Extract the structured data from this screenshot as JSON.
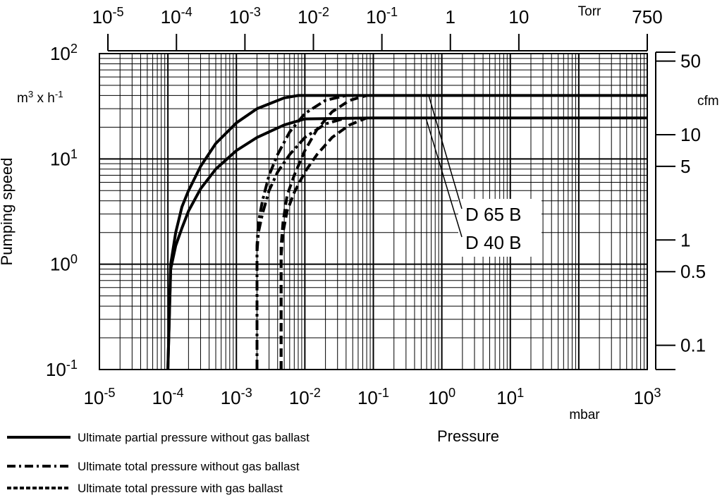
{
  "chart_data": {
    "type": "line",
    "title": "",
    "xlabel": "Pressure",
    "ylabel": "Pumping speed",
    "x_scale": "log",
    "y_scale": "log",
    "xlim": [
      1e-05,
      1000
    ],
    "ylim": [
      0.1,
      100
    ],
    "x_unit": "mbar",
    "y_unit": "m³ x h⁻¹",
    "grid": true,
    "legend_position": "bottom-left",
    "bottom_ticks": [
      {
        "label": "10",
        "exp": "-5"
      },
      {
        "label": "10",
        "exp": "-4"
      },
      {
        "label": "10",
        "exp": "-3"
      },
      {
        "label": "10",
        "exp": "-2"
      },
      {
        "label": "10",
        "exp": "-1"
      },
      {
        "label": "10",
        "exp": "0"
      },
      {
        "label": "10",
        "exp": "1"
      },
      {
        "label": "10",
        "exp": "3"
      }
    ],
    "left_ticks": [
      {
        "label": "10",
        "exp": "2"
      },
      {
        "label": "10",
        "exp": "1"
      },
      {
        "label": "10",
        "exp": "0"
      },
      {
        "label": "10",
        "exp": "-1"
      }
    ],
    "top_axis": {
      "unit": "Torr",
      "ticks": [
        {
          "label": "10",
          "exp": "-5"
        },
        {
          "label": "10",
          "exp": "-4"
        },
        {
          "label": "10",
          "exp": "-3"
        },
        {
          "label": "10",
          "exp": "-2"
        },
        {
          "label": "10",
          "exp": "-1"
        },
        {
          "label": "1",
          "exp": ""
        },
        {
          "label": "10",
          "exp": ""
        },
        {
          "label": "750",
          "exp": ""
        }
      ]
    },
    "right_axis": {
      "unit": "cfm",
      "ticks": [
        "50",
        "10",
        "5",
        "1",
        "0.5",
        "0.1"
      ]
    },
    "annotations": [
      "D 65 B",
      "D 40 B"
    ],
    "series": [
      {
        "label": "D 65 B",
        "style": "solid",
        "x": [
          0.0001,
          0.00011,
          0.00013,
          0.00016,
          0.0002,
          0.0003,
          0.0005,
          0.001,
          0.002,
          0.005,
          0.008,
          0.01,
          0.1,
          1,
          10,
          100,
          1000
        ],
        "y": [
          0.1,
          1,
          2,
          3.5,
          5,
          8.5,
          14,
          22,
          30,
          38,
          40,
          40,
          40,
          40,
          40,
          40,
          40
        ]
      },
      {
        "label": "D 40 B",
        "style": "solid",
        "x": [
          0.0001,
          0.00011,
          0.00013,
          0.00016,
          0.0002,
          0.0003,
          0.0005,
          0.001,
          0.002,
          0.005,
          0.01,
          0.1,
          1,
          10,
          100,
          1000
        ],
        "y": [
          0.1,
          0.9,
          1.5,
          2.2,
          3.2,
          5.2,
          8,
          12,
          16,
          21,
          24,
          24.5,
          24.5,
          24.5,
          24.5,
          24.5
        ]
      },
      {
        "label": "D 65 B",
        "style": "dash-dot",
        "x": [
          0.002,
          0.002,
          0.0021,
          0.0024,
          0.003,
          0.004,
          0.006,
          0.01,
          0.02,
          0.04
        ],
        "y": [
          0.1,
          1.5,
          2.5,
          4,
          7,
          11,
          18,
          27,
          36,
          40
        ]
      },
      {
        "label": "D 40 B",
        "style": "dash-dot",
        "x": [
          0.002,
          0.002,
          0.0021,
          0.0024,
          0.003,
          0.004,
          0.006,
          0.01,
          0.02,
          0.04
        ],
        "y": [
          0.1,
          1.3,
          2,
          3,
          5,
          7.5,
          11,
          16,
          21.5,
          24.5
        ]
      },
      {
        "label": "D 65 B",
        "style": "dashed",
        "x": [
          0.0045,
          0.0045,
          0.0048,
          0.0055,
          0.007,
          0.01,
          0.015,
          0.025,
          0.045,
          0.08
        ],
        "y": [
          0.1,
          1.5,
          2.5,
          4.5,
          7,
          12,
          19,
          28,
          36,
          40
        ]
      },
      {
        "label": "D 40 B",
        "style": "dashed",
        "x": [
          0.0045,
          0.0045,
          0.0048,
          0.0055,
          0.007,
          0.01,
          0.015,
          0.025,
          0.045,
          0.08
        ],
        "y": [
          0.1,
          1.2,
          2,
          3.2,
          4.8,
          7.5,
          11,
          16,
          21,
          24.5
        ]
      }
    ],
    "legend": [
      {
        "style": "solid",
        "label": "Ultimate partial pressure without gas ballast"
      },
      {
        "style": "dash-dot",
        "label": "Ultimate total pressure without gas ballast"
      },
      {
        "style": "dashed",
        "label": "Ultimate total pressure with gas ballast"
      }
    ]
  }
}
